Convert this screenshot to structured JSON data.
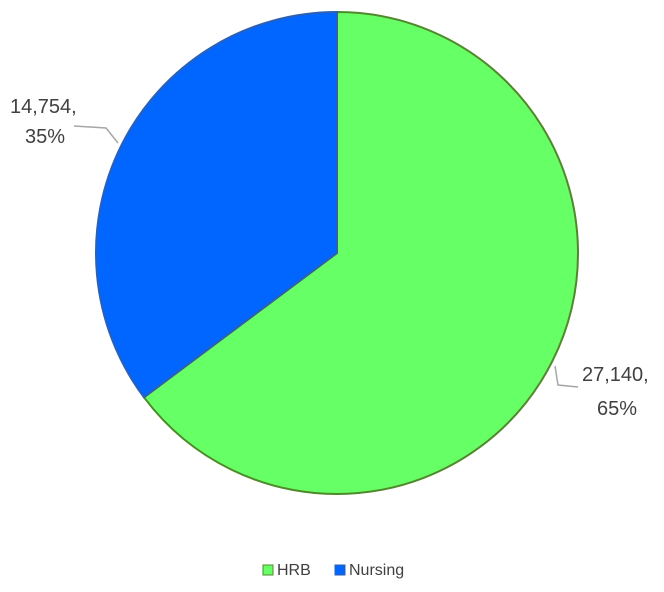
{
  "chart_data": {
    "type": "pie",
    "title": "",
    "series": [
      {
        "name": "HRB",
        "value": 27140,
        "value_label": "27,140,",
        "percent_label": "65%",
        "color": "#66ff66",
        "stroke": "#4f8a2a"
      },
      {
        "name": "Nursing",
        "value": 14754,
        "value_label": "14,754,",
        "percent_label": "35%",
        "color": "#0066ff",
        "stroke": "#2f5fb0"
      }
    ],
    "legend": {
      "position": "bottom",
      "items": [
        "HRB",
        "Nursing"
      ]
    }
  }
}
